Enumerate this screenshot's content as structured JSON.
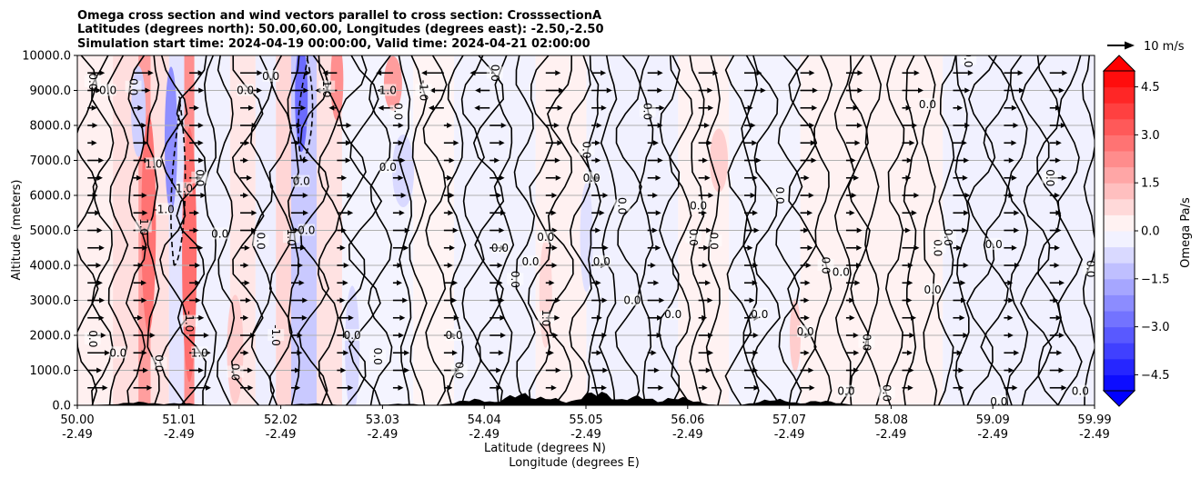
{
  "chart_data": {
    "type": "heatmap",
    "title_lines": [
      "Omega cross section and wind vectors parallel to cross section: CrosssectionA",
      "Latitudes (degrees north): 50.00,60.00, Longitudes (degrees east): -2.50,-2.50",
      "Simulation start time: 2024-04-19 00:00:00, Valid time: 2024-04-21 02:00:00"
    ],
    "xlabel_lines": [
      "Latitude (degrees N)",
      "Longitude (degrees E)"
    ],
    "ylabel": "Altitude (meters)",
    "x_range": [
      50.0,
      59.99
    ],
    "ylim": [
      0,
      10000
    ],
    "x_ticks": [
      {
        "lat": "50.00",
        "lon": "-2.49"
      },
      {
        "lat": "51.01",
        "lon": "-2.49"
      },
      {
        "lat": "52.02",
        "lon": "-2.49"
      },
      {
        "lat": "53.03",
        "lon": "-2.49"
      },
      {
        "lat": "54.04",
        "lon": "-2.49"
      },
      {
        "lat": "55.05",
        "lon": "-2.49"
      },
      {
        "lat": "56.06",
        "lon": "-2.49"
      },
      {
        "lat": "57.07",
        "lon": "-2.49"
      },
      {
        "lat": "58.08",
        "lon": "-2.49"
      },
      {
        "lat": "59.09",
        "lon": "-2.49"
      },
      {
        "lat": "59.99",
        "lon": "-2.49"
      }
    ],
    "y_ticks": [
      0,
      1000,
      2000,
      3000,
      4000,
      5000,
      6000,
      7000,
      8000,
      9000,
      10000
    ],
    "y_tick_labels": [
      "0.0",
      "1000.0",
      "2000.0",
      "3000.0",
      "4000.0",
      "5000.0",
      "6000.0",
      "7000.0",
      "8000.0",
      "9000.0",
      "10000.0"
    ],
    "grid": "horizontal",
    "colorbar": {
      "label": "Omega Pa/s",
      "range": [
        -5.0,
        5.0
      ],
      "ticks": [
        -4.5,
        -3.0,
        -1.5,
        0.0,
        1.5,
        3.0,
        4.5
      ],
      "tick_labels": [
        "−4.5",
        "−3.0",
        "−1.5",
        "0.0",
        "1.5",
        "3.0",
        "4.5"
      ],
      "positive_color": "#ff0000",
      "negative_color": "#0000ff",
      "extend": "both"
    },
    "vector_key": {
      "label": "10 m/s",
      "speed": 10
    },
    "contour_levels": [
      -1.0,
      0.0,
      1.0
    ],
    "contour_labels": [
      {
        "text": "0.0",
        "x": 50.15,
        "y": 9250
      },
      {
        "text": "0.0",
        "x": 50.3,
        "y": 9000
      },
      {
        "text": "0.0",
        "x": 50.15,
        "y": 1900
      },
      {
        "text": "0.0",
        "x": 50.4,
        "y": 1500
      },
      {
        "text": "0.0",
        "x": 50.55,
        "y": 9100
      },
      {
        "text": "1.0",
        "x": 50.75,
        "y": 6900
      },
      {
        "text": "1.0",
        "x": 50.65,
        "y": 5100
      },
      {
        "text": "-1.0",
        "x": 50.85,
        "y": 5600
      },
      {
        "text": "0.0",
        "x": 50.8,
        "y": 1200
      },
      {
        "text": "1.0",
        "x": 51.2,
        "y": 1500
      },
      {
        "text": "-1.0",
        "x": 51.1,
        "y": 2400
      },
      {
        "text": "1.0",
        "x": 51.05,
        "y": 6200
      },
      {
        "text": "0.0",
        "x": 51.2,
        "y": 6500
      },
      {
        "text": "0.0",
        "x": 51.4,
        "y": 4900
      },
      {
        "text": "0.0",
        "x": 51.55,
        "y": 950
      },
      {
        "text": "0.0",
        "x": 51.65,
        "y": 9000
      },
      {
        "text": "0.0",
        "x": 51.8,
        "y": 4700
      },
      {
        "text": "0.0",
        "x": 51.9,
        "y": 9400
      },
      {
        "text": "-1.0",
        "x": 51.95,
        "y": 2000
      },
      {
        "text": "0.0",
        "x": 52.2,
        "y": 6400
      },
      {
        "text": "1.0",
        "x": 52.1,
        "y": 4800
      },
      {
        "text": "0.0",
        "x": 52.25,
        "y": 5000
      },
      {
        "text": "-1.0",
        "x": 52.45,
        "y": 9100
      },
      {
        "text": "0.0",
        "x": 52.7,
        "y": 2000
      },
      {
        "text": "0.0",
        "x": 52.95,
        "y": 1400
      },
      {
        "text": "1.0",
        "x": 53.05,
        "y": 9000
      },
      {
        "text": "-1.0",
        "x": 53.4,
        "y": 9000
      },
      {
        "text": "0.0",
        "x": 53.05,
        "y": 6800
      },
      {
        "text": "0.0",
        "x": 53.15,
        "y": 8400
      },
      {
        "text": "0.0",
        "x": 53.7,
        "y": 2000
      },
      {
        "text": "0.0",
        "x": 53.75,
        "y": 1000
      },
      {
        "text": "0.0",
        "x": 54.15,
        "y": 4500
      },
      {
        "text": "0.0",
        "x": 54.3,
        "y": 3600
      },
      {
        "text": "0.0",
        "x": 54.45,
        "y": 4100
      },
      {
        "text": "0.0",
        "x": 54.1,
        "y": 9500
      },
      {
        "text": "0.0",
        "x": 54.6,
        "y": 4800
      },
      {
        "text": "1.0",
        "x": 54.6,
        "y": 2500
      },
      {
        "text": "0.0",
        "x": 55.05,
        "y": 6500
      },
      {
        "text": "0.0",
        "x": 55.0,
        "y": 7300
      },
      {
        "text": "0.0",
        "x": 55.15,
        "y": 4100
      },
      {
        "text": "0.0",
        "x": 55.35,
        "y": 5700
      },
      {
        "text": "0.0",
        "x": 55.45,
        "y": 3000
      },
      {
        "text": "0.0",
        "x": 55.6,
        "y": 8400
      },
      {
        "text": "0.0",
        "x": 55.85,
        "y": 2600
      },
      {
        "text": "0.0",
        "x": 56.05,
        "y": 4800
      },
      {
        "text": "0.0",
        "x": 56.1,
        "y": 5700
      },
      {
        "text": "0.0",
        "x": 56.25,
        "y": 4700
      },
      {
        "text": "0.0",
        "x": 56.7,
        "y": 2600
      },
      {
        "text": "0.0",
        "x": 56.9,
        "y": 6000
      },
      {
        "text": "0.0",
        "x": 57.15,
        "y": 2100
      },
      {
        "text": "0.0",
        "x": 57.35,
        "y": 4000
      },
      {
        "text": "0.0",
        "x": 57.5,
        "y": 3800
      },
      {
        "text": "0.0",
        "x": 57.75,
        "y": 1800
      },
      {
        "text": "0.0",
        "x": 57.55,
        "y": 400
      },
      {
        "text": "0.0",
        "x": 57.95,
        "y": 350
      },
      {
        "text": "0.0",
        "x": 58.35,
        "y": 8600
      },
      {
        "text": "0.0",
        "x": 58.45,
        "y": 4500
      },
      {
        "text": "0.0",
        "x": 58.4,
        "y": 3300
      },
      {
        "text": "0.0",
        "x": 58.55,
        "y": 4800
      },
      {
        "text": "0.0",
        "x": 59.0,
        "y": 4600
      },
      {
        "text": "0.0",
        "x": 58.75,
        "y": 9900
      },
      {
        "text": "0.0",
        "x": 59.05,
        "y": 100
      },
      {
        "text": "0.0",
        "x": 59.55,
        "y": 6500
      },
      {
        "text": "0.0",
        "x": 59.85,
        "y": 400
      },
      {
        "text": "0.0",
        "x": 59.95,
        "y": 3900
      }
    ],
    "terrain_peaks_m": [
      {
        "lat": 50.6,
        "height": 110
      },
      {
        "lat": 51.0,
        "height": 70
      },
      {
        "lat": 52.3,
        "height": 60
      },
      {
        "lat": 53.2,
        "height": 50
      },
      {
        "lat": 53.9,
        "height": 200
      },
      {
        "lat": 54.35,
        "height": 380
      },
      {
        "lat": 54.6,
        "height": 260
      },
      {
        "lat": 55.1,
        "height": 450
      },
      {
        "lat": 55.5,
        "height": 300
      },
      {
        "lat": 55.9,
        "height": 260
      },
      {
        "lat": 56.85,
        "height": 200
      },
      {
        "lat": 57.3,
        "height": 150
      }
    ]
  }
}
